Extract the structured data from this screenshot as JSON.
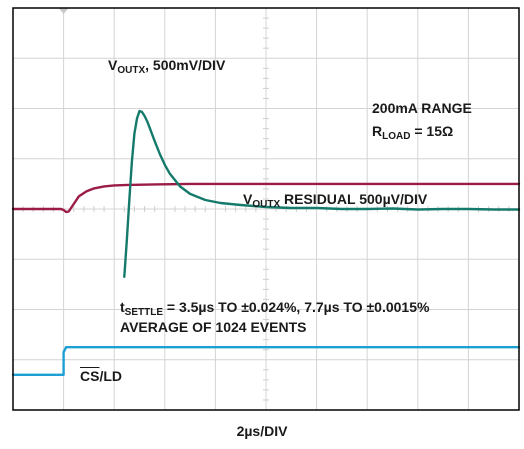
{
  "chart_data": {
    "type": "line",
    "xlabel": "2µs/DIV",
    "grid": true,
    "divisions": {
      "x": 10,
      "y": 8
    },
    "series": [
      {
        "key": "voutx",
        "name_main": "V",
        "name_sub": "OUTX",
        "name_rest": ", 500mV/DIV",
        "color": "#9b1b47",
        "x": [
          0.0,
          0.95,
          1.0,
          1.05,
          1.1,
          1.2,
          1.3,
          1.45,
          1.6,
          1.8,
          2.0,
          2.3,
          2.8,
          3.5,
          4.5,
          6,
          8,
          10
        ],
        "y": [
          0.0,
          0.0,
          -0.02,
          -0.06,
          -0.05,
          0.1,
          0.25,
          0.35,
          0.41,
          0.45,
          0.47,
          0.48,
          0.49,
          0.5,
          0.5,
          0.5,
          0.5,
          0.5
        ]
      },
      {
        "key": "residual",
        "name_main": "V",
        "name_sub": "OUTX",
        "name_rest": " RESIDUAL 500µV/DIV",
        "color": "#157a6b",
        "x": [
          2.2,
          2.25,
          2.3,
          2.35,
          2.4,
          2.45,
          2.5,
          2.55,
          2.6,
          2.65,
          2.7,
          2.8,
          2.9,
          3.0,
          3.1,
          3.3,
          3.5,
          3.8,
          4.1,
          4.5,
          5.0,
          5.5,
          6.0,
          6.5,
          7.0,
          7.5,
          8.0,
          8.5,
          9.0,
          9.5,
          10.0
        ],
        "y": [
          -1.35,
          -0.6,
          0.2,
          0.95,
          1.5,
          1.8,
          1.95,
          1.93,
          1.85,
          1.75,
          1.62,
          1.35,
          1.1,
          0.88,
          0.7,
          0.45,
          0.3,
          0.18,
          0.12,
          0.08,
          0.04,
          0.02,
          0.02,
          0.0,
          0.0,
          0.01,
          -0.01,
          0.0,
          0.0,
          -0.01,
          -0.01
        ]
      },
      {
        "key": "csld",
        "name": "CS/LD",
        "name_over": "CS",
        "name_rest": "/LD",
        "color": "#1e9fd3",
        "x": [
          0.0,
          1.0,
          1.0,
          1.05,
          10.0
        ],
        "y": [
          -3.3,
          -3.3,
          -2.85,
          -2.75,
          -2.75
        ]
      }
    ],
    "annotations": {
      "range": "200mA RANGE",
      "rload_main": "R",
      "rload_sub": "LOAD",
      "rload_rest": " = 15Ω",
      "tsettle_main": "t",
      "tsettle_sub": "SETTLE",
      "tsettle_rest": " = 3.5µs TO ±0.024%, 7.7µs TO ±0.0015%",
      "average": "AVERAGE OF 1024 EVENTS"
    }
  }
}
